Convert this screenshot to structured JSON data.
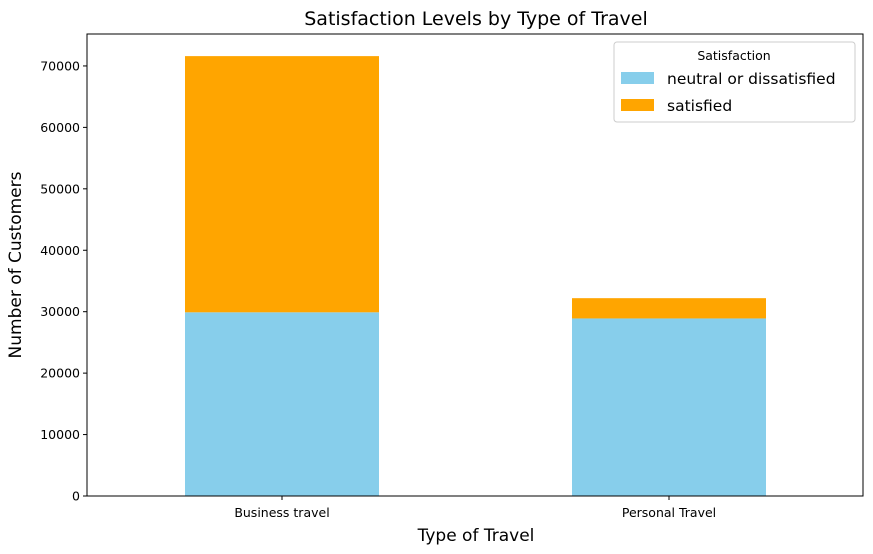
{
  "chart_data": {
    "type": "bar",
    "stacked": true,
    "title": "Satisfaction Levels by Type of Travel",
    "xlabel": "Type of Travel",
    "ylabel": "Number of Customers",
    "categories": [
      "Business travel",
      "Personal Travel"
    ],
    "series": [
      {
        "name": "neutral or dissatisfied",
        "values": [
          29900,
          28900
        ],
        "color": "#87CEEB"
      },
      {
        "name": "satisfied",
        "values": [
          41700,
          3300
        ],
        "color": "#FFA500"
      }
    ],
    "ylim": [
      0,
      75200
    ],
    "yticks": [
      0,
      10000,
      20000,
      30000,
      40000,
      50000,
      60000,
      70000
    ],
    "legend": {
      "title": "Satisfaction",
      "position": "top-right"
    },
    "grid": false
  }
}
